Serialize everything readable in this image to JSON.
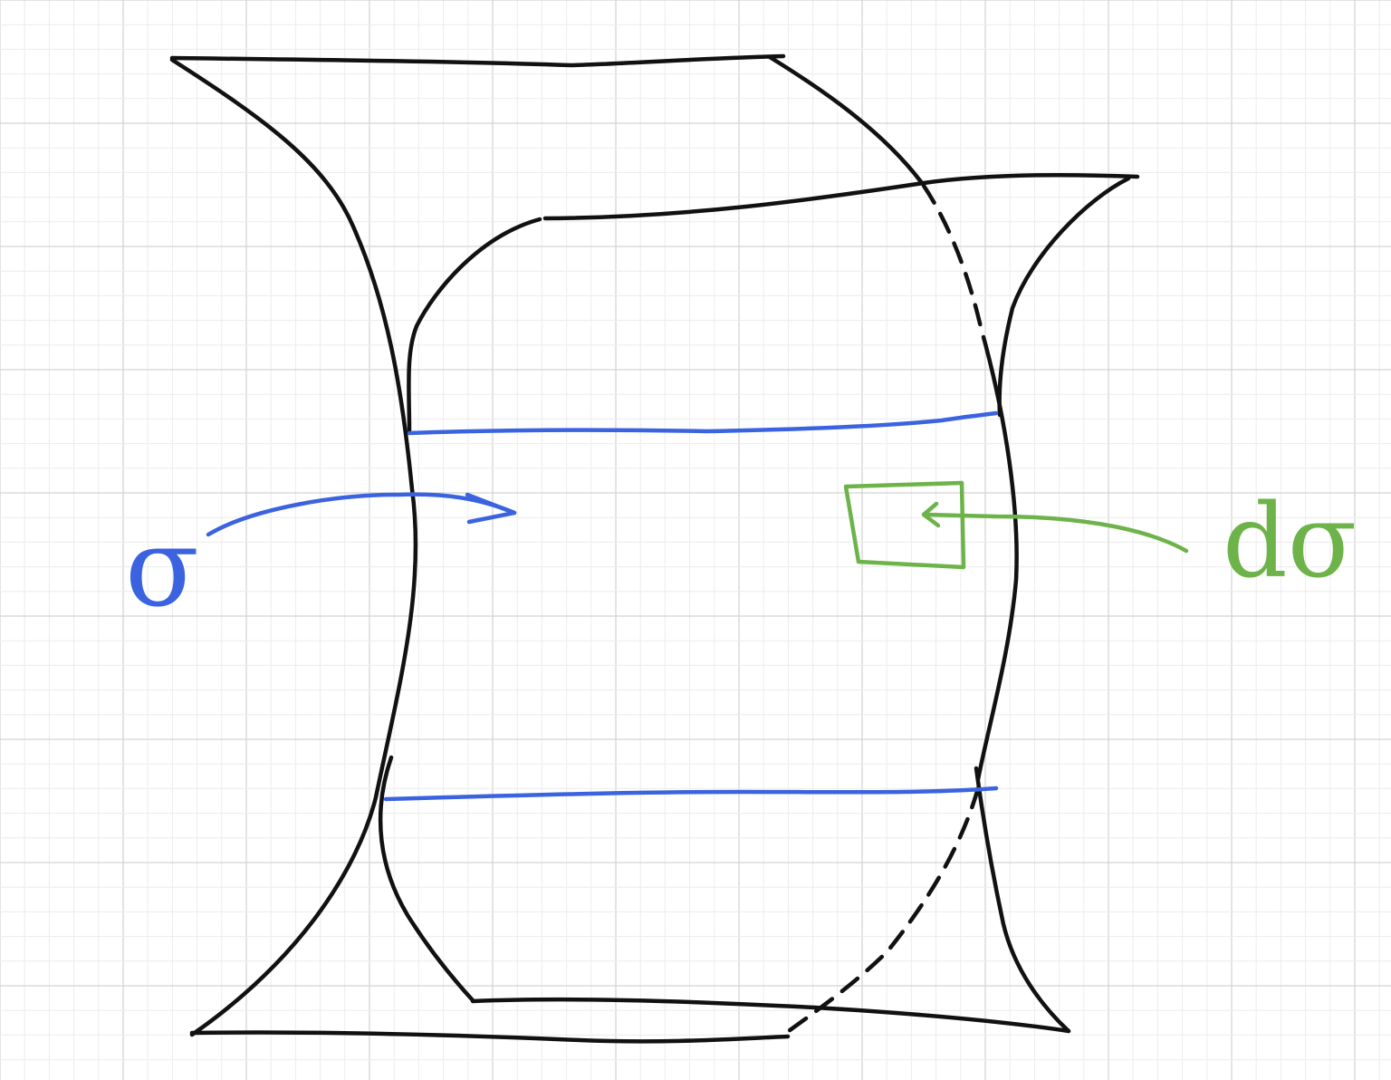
{
  "canvas": {
    "background": "#ffffff",
    "grid_minor_color": "#ececec",
    "grid_major_color": "#d3d3d3"
  },
  "ink": {
    "surface_color": "#111111",
    "sigma_color": "#3b63e0",
    "dsigma_color": "#6db34a"
  },
  "labels": {
    "sigma": "σ",
    "dsigma": "dσ"
  }
}
